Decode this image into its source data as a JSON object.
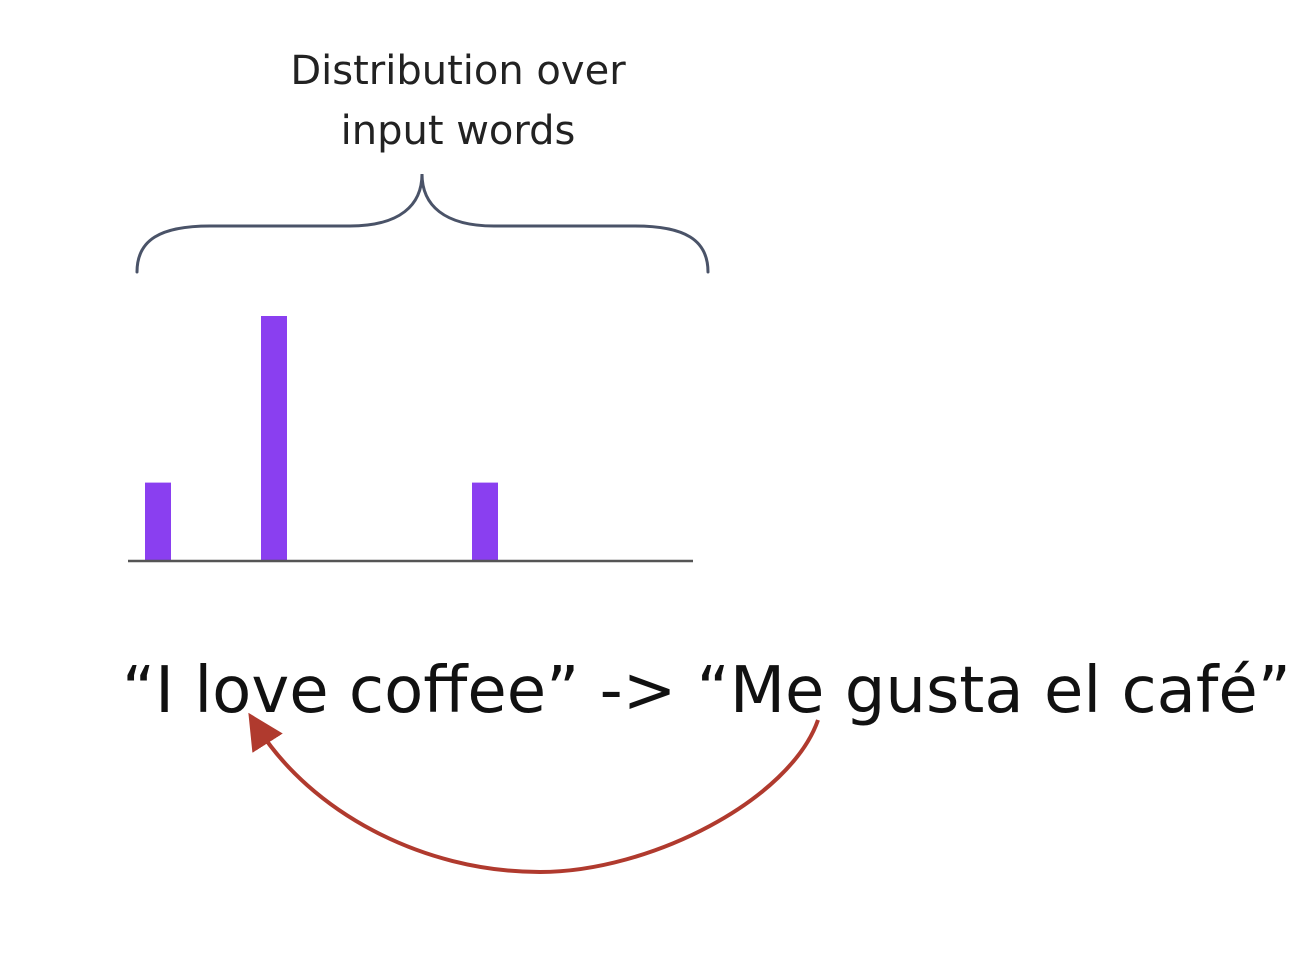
{
  "diagram": {
    "heading": {
      "line1": "Distribution over",
      "line2": "input words"
    },
    "distribution": {
      "bar_color": "#8a3ff0",
      "baseline_color": "#555555",
      "values": [
        0.32,
        1.0,
        0.32
      ]
    },
    "sentence": "“I love coffee” -> “Me gusta el café”",
    "arrow_color": "#b03a2e",
    "brace_color": "#4a5368"
  }
}
